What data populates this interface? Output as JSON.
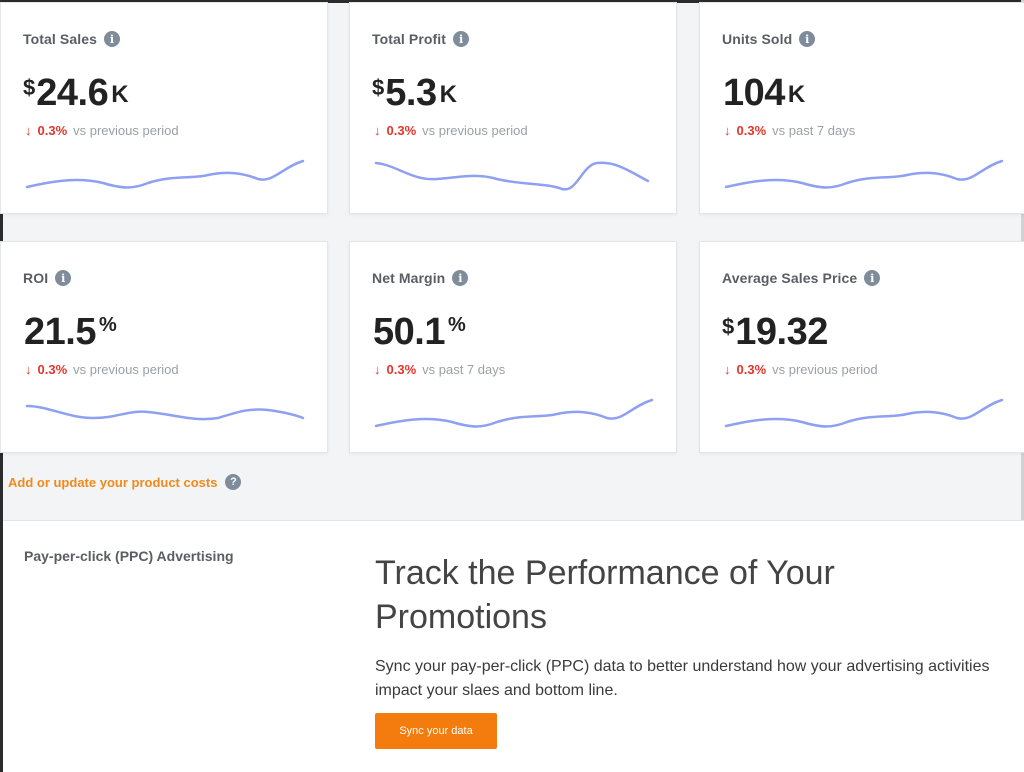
{
  "colors": {
    "accent_orange": "#f47c0e",
    "link_orange": "#f08a1c",
    "negative_red": "#e5352b",
    "sparkline_blue": "#8ea0f2"
  },
  "cards": [
    {
      "title": "Total Sales",
      "prefix": "$",
      "value": "24.6",
      "suffix": "K",
      "change": "0.3%",
      "note": "vs previous period",
      "icon": "info-icon",
      "trend_icon": "arrow-down-icon"
    },
    {
      "title": "Total Profit",
      "prefix": "$",
      "value": "5.3",
      "suffix": "K",
      "change": "0.3%",
      "note": "vs previous period",
      "icon": "info-icon",
      "trend_icon": "arrow-down-icon"
    },
    {
      "title": "Units Sold",
      "prefix": "",
      "value": "104",
      "suffix": "K",
      "change": "0.3%",
      "note": "vs past 7 days",
      "icon": "info-icon",
      "trend_icon": "arrow-down-icon"
    },
    {
      "title": "ROI",
      "prefix": "",
      "value": "21.5",
      "suffix": "%",
      "change": "0.3%",
      "note": "vs previous period",
      "icon": "info-icon",
      "trend_icon": "arrow-down-icon"
    },
    {
      "title": "Net Margin",
      "prefix": "",
      "value": "50.1",
      "suffix": "%",
      "change": "0.3%",
      "note": "vs past 7 days",
      "icon": "info-icon",
      "trend_icon": "arrow-down-icon"
    },
    {
      "title": "Average Sales Price",
      "prefix": "$",
      "value": "19.32",
      "suffix": "",
      "change": "0.3%",
      "note": "vs previous period",
      "icon": "info-icon",
      "trend_icon": "arrow-down-icon"
    }
  ],
  "cost_link": {
    "label": "Add or update your product costs",
    "icon": "help-icon"
  },
  "ppc": {
    "section_title": "Pay-per-click (PPC) Advertising",
    "heading": "Track the Performance of Your Promotions",
    "description": "Sync your pay-per-click (PPC) data to better understand how your advertising activities impact your slaes and bottom line.",
    "button_label": "Sync your data"
  }
}
